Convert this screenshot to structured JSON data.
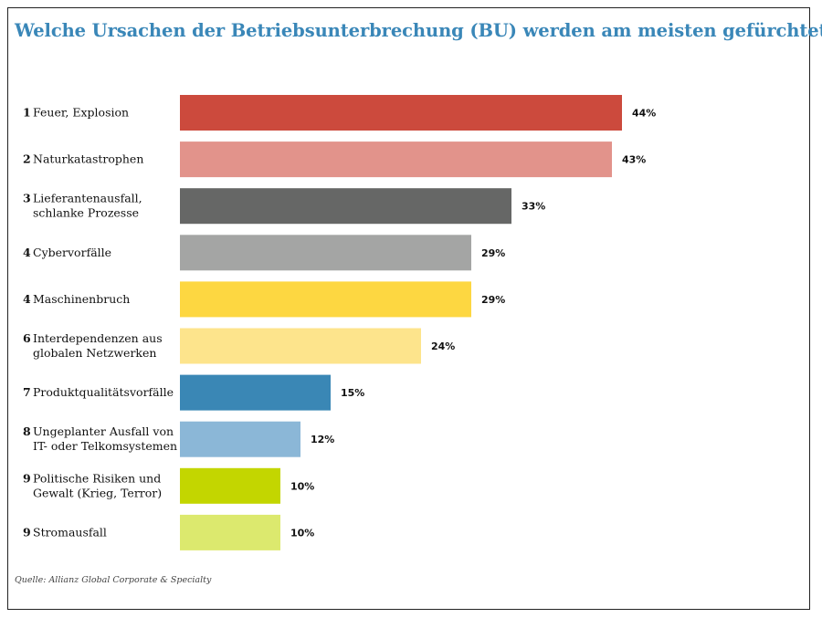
{
  "colors": {
    "title": "#3a87b8",
    "bars": [
      "#cc4a3d",
      "#e2938b",
      "#666766",
      "#a4a5a4",
      "#fdd741",
      "#fde48c",
      "#3a87b5",
      "#8bb7d7",
      "#c3d600",
      "#dce96e"
    ]
  },
  "chart_data": {
    "type": "bar",
    "orientation": "horizontal",
    "title": "Welche Ursachen der Betriebsunterbrechung (BU) werden am meisten gefürchtet?",
    "categories": [
      {
        "rank": "1",
        "lines": [
          "Feuer, Explosion"
        ]
      },
      {
        "rank": "2",
        "lines": [
          "Naturkatastrophen"
        ]
      },
      {
        "rank": "3",
        "lines": [
          "Lieferantenausfall,",
          "schlanke Prozesse"
        ]
      },
      {
        "rank": "4",
        "lines": [
          "Cybervorfälle"
        ]
      },
      {
        "rank": "4",
        "lines": [
          "Maschinenbruch"
        ]
      },
      {
        "rank": "6",
        "lines": [
          "Interdependenzen aus",
          "globalen Netzwerken"
        ]
      },
      {
        "rank": "7",
        "lines": [
          "Produktqualitätsvorfälle"
        ]
      },
      {
        "rank": "8",
        "lines": [
          "Ungeplanter Ausfall von",
          "IT- oder Telkomsystemen"
        ]
      },
      {
        "rank": "9",
        "lines": [
          "Politische Risiken und",
          "Gewalt (Krieg, Terror)"
        ]
      },
      {
        "rank": "9",
        "lines": [
          "Stromausfall"
        ]
      }
    ],
    "values": [
      44,
      43,
      33,
      29,
      29,
      24,
      15,
      12,
      10,
      10
    ],
    "value_labels": [
      "44%",
      "43%",
      "33%",
      "29%",
      "29%",
      "24%",
      "15%",
      "12%",
      "10%",
      "10%"
    ],
    "unit": "%",
    "grid": false,
    "legend": "none"
  },
  "source": "Quelle: Allianz Global Corporate & Specialty"
}
